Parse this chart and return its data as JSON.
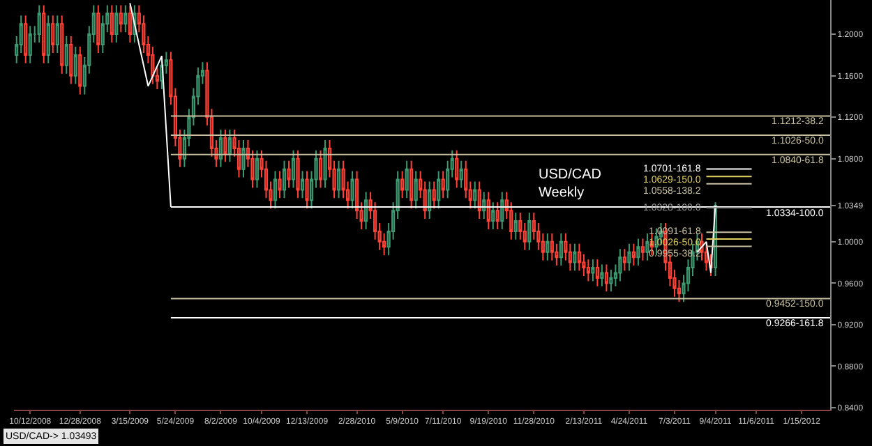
{
  "chart_data": {
    "type": "candlestick",
    "x": [
      "2008-09-21",
      "2008-09-28",
      "2008-10-05",
      "2008-10-12",
      "2008-10-19",
      "2008-10-26",
      "2008-11-02",
      "2008-11-09",
      "2008-11-16",
      "2008-11-23",
      "2008-11-30",
      "2008-12-07",
      "2008-12-14",
      "2008-12-21",
      "2008-12-28",
      "2009-01-04",
      "2009-01-11",
      "2009-01-18",
      "2009-01-25",
      "2009-02-01",
      "2009-02-08",
      "2009-02-15",
      "2009-02-22",
      "2009-03-01",
      "2009-03-08",
      "2009-03-15",
      "2009-03-22",
      "2009-03-29",
      "2009-04-05",
      "2009-04-12",
      "2009-04-19",
      "2009-04-26",
      "2009-05-03",
      "2009-05-10",
      "2009-05-17",
      "2009-05-24",
      "2009-05-31",
      "2009-06-07",
      "2009-06-14",
      "2009-06-21",
      "2009-06-28",
      "2009-07-05",
      "2009-07-12",
      "2009-07-19",
      "2009-07-26",
      "2009-08-02",
      "2009-08-09",
      "2009-08-16",
      "2009-08-23",
      "2009-08-30",
      "2009-09-06",
      "2009-09-13",
      "2009-09-20",
      "2009-09-27",
      "2009-10-04",
      "2009-10-11",
      "2009-10-18",
      "2009-10-25",
      "2009-11-01",
      "2009-11-08",
      "2009-11-15",
      "2009-11-22",
      "2009-11-29",
      "2009-12-06",
      "2009-12-13",
      "2009-12-20",
      "2009-12-27",
      "2010-01-03",
      "2010-01-10",
      "2010-01-17",
      "2010-01-24",
      "2010-01-31",
      "2010-02-07",
      "2010-02-14",
      "2010-02-21",
      "2010-02-28",
      "2010-03-07",
      "2010-03-14",
      "2010-03-21",
      "2010-03-28",
      "2010-04-04",
      "2010-04-11",
      "2010-04-18",
      "2010-04-25",
      "2010-05-02",
      "2010-05-09",
      "2010-05-16",
      "2010-05-23",
      "2010-05-30",
      "2010-06-06",
      "2010-06-13",
      "2010-06-20",
      "2010-06-27",
      "2010-07-04",
      "2010-07-11",
      "2010-07-18",
      "2010-07-25",
      "2010-08-01",
      "2010-08-08",
      "2010-08-15",
      "2010-08-22",
      "2010-08-29",
      "2010-09-05",
      "2010-09-12",
      "2010-09-19",
      "2010-09-26",
      "2010-10-03",
      "2010-10-10",
      "2010-10-17",
      "2010-10-24",
      "2010-10-31",
      "2010-11-07",
      "2010-11-14",
      "2010-11-21",
      "2010-11-28",
      "2010-12-05",
      "2010-12-12",
      "2010-12-19",
      "2010-12-26",
      "2011-01-02",
      "2011-01-09",
      "2011-01-16",
      "2011-01-23",
      "2011-01-30",
      "2011-02-06",
      "2011-02-13",
      "2011-02-20",
      "2011-02-27",
      "2011-03-06",
      "2011-03-13",
      "2011-03-20",
      "2011-03-27",
      "2011-04-03",
      "2011-04-10",
      "2011-04-17",
      "2011-04-24",
      "2011-05-01",
      "2011-05-08",
      "2011-05-15",
      "2011-05-22",
      "2011-05-29",
      "2011-06-05",
      "2011-06-12",
      "2011-06-19",
      "2011-06-26",
      "2011-07-03",
      "2011-07-10",
      "2011-07-17",
      "2011-07-24",
      "2011-07-31",
      "2011-08-07",
      "2011-08-14",
      "2011-08-21",
      "2011-08-28",
      "2011-09-04"
    ],
    "ohlc": [
      [
        1.18,
        1.198,
        1.172,
        1.19
      ],
      [
        1.19,
        1.218,
        1.182,
        1.21
      ],
      [
        1.21,
        1.218,
        1.172,
        1.18
      ],
      [
        1.18,
        1.208,
        1.172,
        1.2
      ],
      [
        1.2,
        1.208,
        1.192,
        1.2
      ],
      [
        1.2,
        1.228,
        1.192,
        1.22
      ],
      [
        1.22,
        1.228,
        1.172,
        1.18
      ],
      [
        1.18,
        1.218,
        1.172,
        1.21
      ],
      [
        1.21,
        1.218,
        1.182,
        1.19
      ],
      [
        1.19,
        1.218,
        1.182,
        1.21
      ],
      [
        1.21,
        1.218,
        1.162,
        1.17
      ],
      [
        1.17,
        1.198,
        1.162,
        1.19
      ],
      [
        1.19,
        1.198,
        1.152,
        1.16
      ],
      [
        1.16,
        1.188,
        1.152,
        1.18
      ],
      [
        1.18,
        1.188,
        1.142,
        1.15
      ],
      [
        1.15,
        1.178,
        1.142,
        1.17
      ],
      [
        1.17,
        1.208,
        1.162,
        1.2
      ],
      [
        1.2,
        1.228,
        1.192,
        1.22
      ],
      [
        1.22,
        1.228,
        1.182,
        1.19
      ],
      [
        1.19,
        1.218,
        1.182,
        1.21
      ],
      [
        1.21,
        1.228,
        1.202,
        1.22
      ],
      [
        1.22,
        1.228,
        1.192,
        1.2
      ],
      [
        1.2,
        1.228,
        1.192,
        1.22
      ],
      [
        1.22,
        1.228,
        1.202,
        1.21
      ],
      [
        1.21,
        1.228,
        1.202,
        1.22
      ],
      [
        1.22,
        1.228,
        1.192,
        1.2
      ],
      [
        1.2,
        1.228,
        1.192,
        1.22
      ],
      [
        1.22,
        1.228,
        1.202,
        1.21
      ],
      [
        1.21,
        1.218,
        1.182,
        1.19
      ],
      [
        1.19,
        1.198,
        1.172,
        1.18
      ],
      [
        1.18,
        1.188,
        1.152,
        1.16
      ],
      [
        1.16,
        1.168,
        1.147,
        1.155
      ],
      [
        1.155,
        1.178,
        1.147,
        1.17
      ],
      [
        1.17,
        1.183,
        1.162,
        1.175
      ],
      [
        1.175,
        1.183,
        1.132,
        1.14
      ],
      [
        1.14,
        1.148,
        1.092,
        1.1
      ],
      [
        1.1,
        1.108,
        1.072,
        1.08
      ],
      [
        1.08,
        1.108,
        1.072,
        1.1
      ],
      [
        1.1,
        1.128,
        1.092,
        1.12
      ],
      [
        1.12,
        1.148,
        1.112,
        1.14
      ],
      [
        1.14,
        1.168,
        1.132,
        1.16
      ],
      [
        1.16,
        1.173,
        1.152,
        1.165
      ],
      [
        1.165,
        1.173,
        1.112,
        1.12
      ],
      [
        1.12,
        1.128,
        1.082,
        1.09
      ],
      [
        1.09,
        1.098,
        1.072,
        1.08
      ],
      [
        1.08,
        1.108,
        1.072,
        1.1
      ],
      [
        1.1,
        1.108,
        1.077,
        1.085
      ],
      [
        1.085,
        1.108,
        1.077,
        1.1
      ],
      [
        1.1,
        1.108,
        1.082,
        1.09
      ],
      [
        1.09,
        1.098,
        1.062,
        1.07
      ],
      [
        1.07,
        1.098,
        1.062,
        1.09
      ],
      [
        1.09,
        1.098,
        1.072,
        1.08
      ],
      [
        1.08,
        1.088,
        1.052,
        1.06
      ],
      [
        1.06,
        1.088,
        1.052,
        1.08
      ],
      [
        1.08,
        1.088,
        1.062,
        1.07
      ],
      [
        1.07,
        1.078,
        1.042,
        1.05
      ],
      [
        1.05,
        1.058,
        1.032,
        1.04
      ],
      [
        1.04,
        1.068,
        1.032,
        1.06
      ],
      [
        1.06,
        1.068,
        1.042,
        1.05
      ],
      [
        1.05,
        1.078,
        1.042,
        1.07
      ],
      [
        1.07,
        1.078,
        1.052,
        1.06
      ],
      [
        1.06,
        1.088,
        1.052,
        1.08
      ],
      [
        1.08,
        1.088,
        1.042,
        1.05
      ],
      [
        1.05,
        1.068,
        1.042,
        1.06
      ],
      [
        1.06,
        1.068,
        1.032,
        1.04
      ],
      [
        1.04,
        1.068,
        1.032,
        1.06
      ],
      [
        1.06,
        1.088,
        1.052,
        1.08
      ],
      [
        1.08,
        1.088,
        1.052,
        1.06
      ],
      [
        1.06,
        1.098,
        1.052,
        1.09
      ],
      [
        1.09,
        1.098,
        1.062,
        1.07
      ],
      [
        1.07,
        1.078,
        1.042,
        1.05
      ],
      [
        1.05,
        1.078,
        1.042,
        1.07
      ],
      [
        1.07,
        1.078,
        1.042,
        1.05
      ],
      [
        1.05,
        1.058,
        1.032,
        1.04
      ],
      [
        1.04,
        1.068,
        1.032,
        1.06
      ],
      [
        1.06,
        1.068,
        1.022,
        1.03
      ],
      [
        1.03,
        1.038,
        1.012,
        1.02
      ],
      [
        1.02,
        1.048,
        1.012,
        1.04
      ],
      [
        1.04,
        1.048,
        1.022,
        1.03
      ],
      [
        1.03,
        1.038,
        1.002,
        1.01
      ],
      [
        1.01,
        1.018,
        0.992,
        1
      ],
      [
        1,
        1.008,
        0.987,
        0.995
      ],
      [
        0.995,
        1.018,
        0.987,
        1.01
      ],
      [
        1.01,
        1.038,
        1.002,
        1.03
      ],
      [
        1.03,
        1.068,
        1.022,
        1.06
      ],
      [
        1.06,
        1.068,
        1.042,
        1.05
      ],
      [
        1.05,
        1.078,
        1.042,
        1.07
      ],
      [
        1.07,
        1.078,
        1.032,
        1.04
      ],
      [
        1.04,
        1.068,
        1.032,
        1.06
      ],
      [
        1.06,
        1.068,
        1.042,
        1.05
      ],
      [
        1.05,
        1.058,
        1.022,
        1.03
      ],
      [
        1.03,
        1.058,
        1.022,
        1.05
      ],
      [
        1.05,
        1.058,
        1.032,
        1.04
      ],
      [
        1.04,
        1.068,
        1.032,
        1.06
      ],
      [
        1.06,
        1.068,
        1.042,
        1.05
      ],
      [
        1.05,
        1.078,
        1.042,
        1.07
      ],
      [
        1.07,
        1.088,
        1.062,
        1.08
      ],
      [
        1.08,
        1.088,
        1.052,
        1.06
      ],
      [
        1.06,
        1.078,
        1.052,
        1.07
      ],
      [
        1.07,
        1.078,
        1.042,
        1.05
      ],
      [
        1.05,
        1.058,
        1.032,
        1.04
      ],
      [
        1.04,
        1.058,
        1.032,
        1.05
      ],
      [
        1.05,
        1.058,
        1.022,
        1.03
      ],
      [
        1.03,
        1.048,
        1.022,
        1.04
      ],
      [
        1.04,
        1.048,
        1.012,
        1.02
      ],
      [
        1.02,
        1.038,
        1.012,
        1.03
      ],
      [
        1.03,
        1.038,
        1.012,
        1.02
      ],
      [
        1.02,
        1.048,
        1.012,
        1.04
      ],
      [
        1.04,
        1.048,
        1.022,
        1.03
      ],
      [
        1.03,
        1.038,
        1.002,
        1.01
      ],
      [
        1.01,
        1.028,
        1.002,
        1.02
      ],
      [
        1.02,
        1.028,
        1.002,
        1.01
      ],
      [
        1.01,
        1.018,
        0.992,
        1
      ],
      [
        1,
        1.028,
        0.992,
        1.02
      ],
      [
        1.02,
        1.028,
        1.002,
        1.01
      ],
      [
        1.01,
        1.018,
        0.992,
        1
      ],
      [
        1,
        1.008,
        0.982,
        0.99
      ],
      [
        0.99,
        1.008,
        0.982,
        1
      ],
      [
        1,
        1.008,
        0.982,
        0.99
      ],
      [
        0.99,
        0.998,
        0.977,
        0.985
      ],
      [
        0.985,
        1.008,
        0.977,
        1
      ],
      [
        1,
        1.008,
        0.982,
        0.99
      ],
      [
        0.99,
        0.998,
        0.972,
        0.98
      ],
      [
        0.98,
        0.998,
        0.972,
        0.99
      ],
      [
        0.99,
        0.998,
        0.972,
        0.98
      ],
      [
        0.98,
        0.988,
        0.967,
        0.975
      ],
      [
        0.975,
        0.983,
        0.962,
        0.97
      ],
      [
        0.97,
        0.983,
        0.962,
        0.975
      ],
      [
        0.975,
        0.983,
        0.957,
        0.965
      ],
      [
        0.965,
        0.978,
        0.957,
        0.97
      ],
      [
        0.97,
        0.978,
        0.952,
        0.96
      ],
      [
        0.96,
        0.973,
        0.952,
        0.965
      ],
      [
        0.965,
        0.978,
        0.957,
        0.97
      ],
      [
        0.97,
        0.993,
        0.962,
        0.985
      ],
      [
        0.985,
        0.993,
        0.972,
        0.98
      ],
      [
        0.98,
        0.998,
        0.972,
        0.99
      ],
      [
        0.99,
        0.998,
        0.977,
        0.985
      ],
      [
        0.985,
        1.003,
        0.977,
        0.995
      ],
      [
        0.995,
        1.003,
        0.982,
        0.99
      ],
      [
        0.99,
        1.008,
        0.982,
        1
      ],
      [
        1,
        1.008,
        0.987,
        0.995
      ],
      [
        0.995,
        1.013,
        0.987,
        1.005
      ],
      [
        1.005,
        1.018,
        0.997,
        1.01
      ],
      [
        1.01,
        1.018,
        0.972,
        0.98
      ],
      [
        0.98,
        0.988,
        0.957,
        0.965
      ],
      [
        0.965,
        0.973,
        0.947,
        0.955
      ],
      [
        0.955,
        0.963,
        0.942,
        0.95
      ],
      [
        0.95,
        0.968,
        0.942,
        0.96
      ],
      [
        0.96,
        0.983,
        0.952,
        0.975
      ],
      [
        0.975,
        0.998,
        0.967,
        0.99
      ],
      [
        0.99,
        1.008,
        0.982,
        1
      ],
      [
        1,
        1.008,
        0.982,
        0.99
      ],
      [
        0.99,
        0.998,
        0.972,
        0.98
      ],
      [
        0.98,
        0.988,
        0.967,
        0.975
      ],
      [
        0.975,
        1.038,
        0.967,
        1.0349
      ]
    ],
    "series": [
      {
        "type": "line",
        "color": "#ffffff",
        "x": [
          "2009-03-15",
          "2009-04-12",
          "2009-05-03",
          "2009-05-17"
        ],
        "values": [
          1.23,
          1.15,
          1.179,
          1.0334
        ]
      },
      {
        "type": "line",
        "color": "#ffffff",
        "x": [
          "2011-08-07",
          "2011-08-21",
          "2011-08-28",
          "2011-09-04"
        ],
        "values": [
          0.99,
          1.0,
          0.97,
          1.0349
        ]
      },
      {
        "type": "line",
        "name": "1.1212-38.2",
        "color": "#c8c0a0",
        "x": [
          "2009-05-17",
          "2012-02-28"
        ],
        "values": [
          1.1212,
          1.1212
        ]
      },
      {
        "type": "line",
        "name": "1.1026-50.0",
        "color": "#c8c0a0",
        "x": [
          "2009-05-17",
          "2012-02-28"
        ],
        "values": [
          1.1026,
          1.1026
        ]
      },
      {
        "type": "line",
        "name": "1.0840-61.8",
        "color": "#c8c0a0",
        "x": [
          "2009-05-17",
          "2012-02-28"
        ],
        "values": [
          1.084,
          1.084
        ]
      },
      {
        "type": "line",
        "name": "1.0334-100.0",
        "color": "#ffffff",
        "x": [
          "2009-05-17",
          "2012-02-28"
        ],
        "values": [
          1.0334,
          1.0334
        ]
      },
      {
        "type": "line",
        "name": "0.9452-150.0",
        "color": "#c8c0a0",
        "x": [
          "2009-05-17",
          "2012-02-28"
        ],
        "values": [
          0.9452,
          0.9452
        ]
      },
      {
        "type": "line",
        "name": "0.9266-161.8",
        "color": "#ffffff",
        "x": [
          "2009-05-17",
          "2012-02-28"
        ],
        "values": [
          0.9266,
          0.9266
        ]
      },
      {
        "type": "line",
        "name": "1.0701-161.8",
        "color": "#ffffff",
        "x": [
          "2011-08-21",
          "2011-10-30"
        ],
        "values": [
          1.0701,
          1.0701
        ]
      },
      {
        "type": "line",
        "name": "1.0629-150.0",
        "color": "#e0d060",
        "x": [
          "2011-08-21",
          "2011-10-30"
        ],
        "values": [
          1.0629,
          1.0629
        ]
      },
      {
        "type": "line",
        "name": "1.0558-138.2",
        "color": "#c8c0a0",
        "x": [
          "2011-08-21",
          "2011-10-30"
        ],
        "values": [
          1.0558,
          1.0558
        ]
      },
      {
        "type": "line",
        "name": "1.0328-100.0",
        "color": "#999999",
        "x": [
          "2011-08-21",
          "2011-10-30"
        ],
        "values": [
          1.0328,
          1.0328
        ]
      },
      {
        "type": "line",
        "name": "1.0091-61.8",
        "color": "#c8c0a0",
        "x": [
          "2011-08-21",
          "2011-10-30"
        ],
        "values": [
          1.0091,
          1.0091
        ]
      },
      {
        "type": "line",
        "name": "1.0026-50.0",
        "color": "#e0d060",
        "x": [
          "2011-08-21",
          "2011-10-30"
        ],
        "values": [
          1.0026,
          1.0026
        ]
      },
      {
        "type": "line",
        "name": "0.9955-38.2",
        "color": "#c8c0a0",
        "x": [
          "2011-08-21",
          "2011-10-30"
        ],
        "values": [
          0.9955,
          0.9955
        ]
      }
    ],
    "annotations": [
      "USD/CAD\nWeekly",
      "USD/CAD-> 1.03493"
    ],
    "xlim": [
      "2008-09-17",
      "2012-02-28"
    ],
    "xticks": [
      {
        "value": "2008-10-12",
        "label": "10/12/2008"
      },
      {
        "value": "2008-12-28",
        "label": "12/28/2008"
      },
      {
        "value": "2009-03-15",
        "label": "3/15/2009"
      },
      {
        "value": "2009-05-24",
        "label": "5/24/2009"
      },
      {
        "value": "2009-08-02",
        "label": "8/2/2009"
      },
      {
        "value": "2009-10-04",
        "label": "10/4/2009"
      },
      {
        "value": "2009-12-13",
        "label": "12/13/2009"
      },
      {
        "value": "2010-02-28",
        "label": "2/28/2010"
      },
      {
        "value": "2010-05-09",
        "label": "5/9/2010"
      },
      {
        "value": "2010-07-11",
        "label": "7/11/2010"
      },
      {
        "value": "2010-09-19",
        "label": "9/19/2010"
      },
      {
        "value": "2010-11-28",
        "label": "11/28/2010"
      },
      {
        "value": "2011-02-13",
        "label": "2/13/2011"
      },
      {
        "value": "2011-04-24",
        "label": "4/24/2011"
      },
      {
        "value": "2011-07-03",
        "label": "7/3/2011"
      },
      {
        "value": "2011-09-04",
        "label": "9/4/2011"
      },
      {
        "value": "2011-11-06",
        "label": "11/6/2011"
      },
      {
        "value": "2012-01-15",
        "label": "1/15/2012"
      }
    ],
    "ylim": [
      0.838,
      1.233
    ],
    "yticks": [
      {
        "value": 0.84,
        "label": "0.8400"
      },
      {
        "value": 0.88,
        "label": "0.8800"
      },
      {
        "value": 0.92,
        "label": "0.9200"
      },
      {
        "value": 0.96,
        "label": "0.9600"
      },
      {
        "value": 1.0,
        "label": "1.0000"
      },
      {
        "value": 1.08,
        "label": "1.0800"
      },
      {
        "value": 1.12,
        "label": "1.1200"
      },
      {
        "value": 1.16,
        "label": "1.1600"
      },
      {
        "value": 1.2,
        "label": "1.2000"
      },
      {
        "value": 1.0349,
        "label": "1.0349"
      }
    ]
  }
}
